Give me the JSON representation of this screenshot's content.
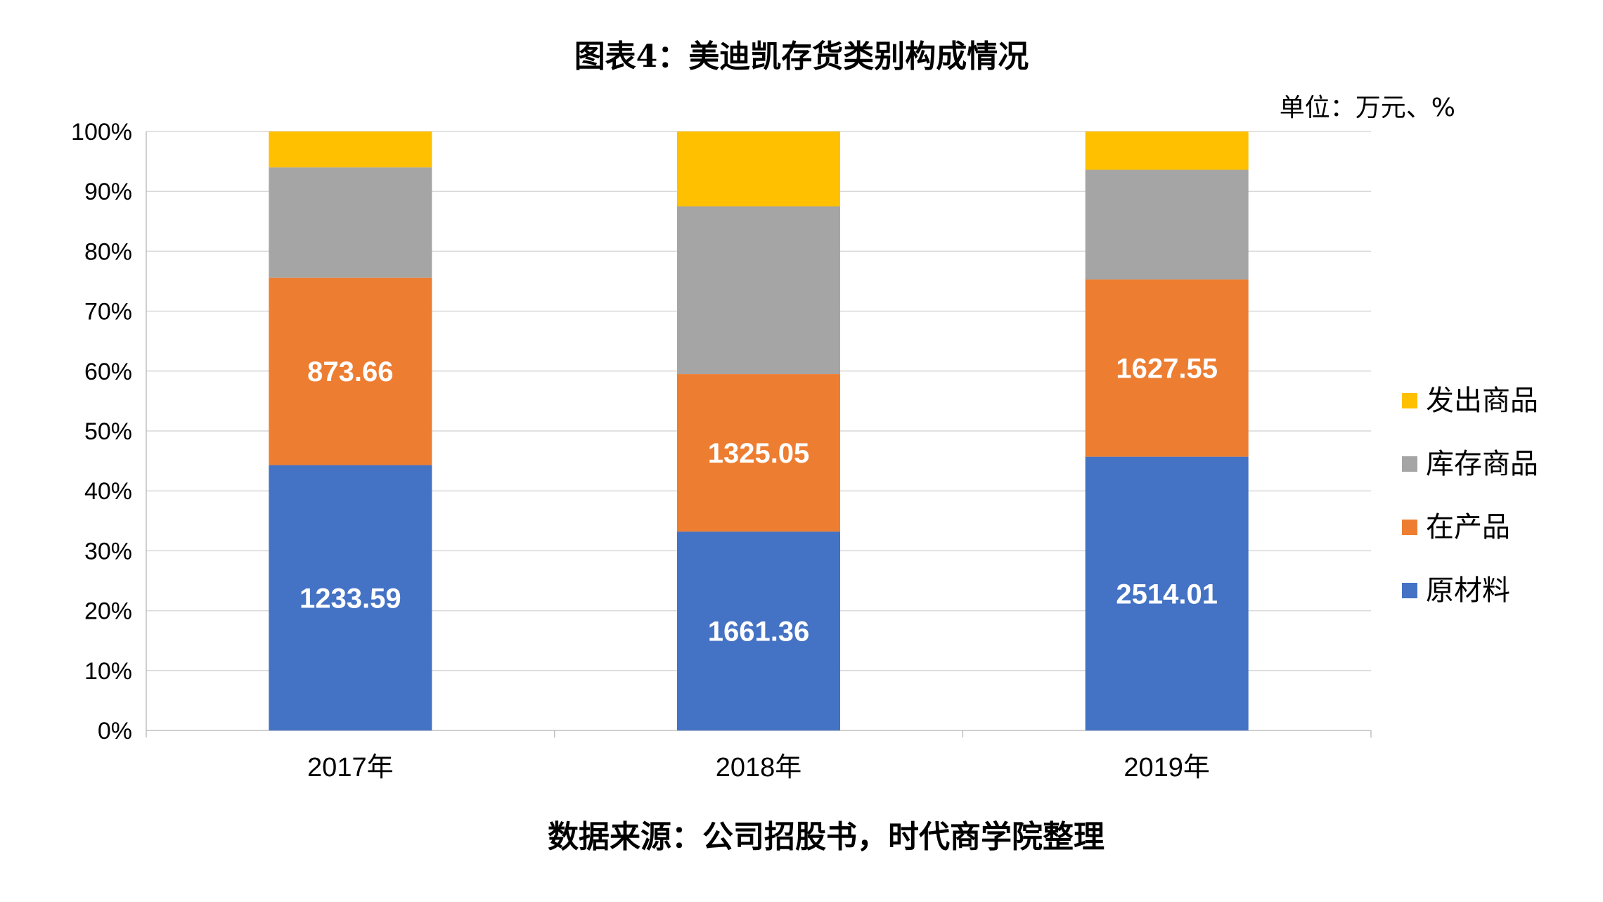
{
  "chart_data": {
    "type": "bar",
    "stacked": true,
    "percent_stacked": true,
    "title": "图表4：美迪凯存货类别构成情况",
    "unit_note": "单位：万元、%",
    "source": "数据来源：公司招股书，时代商学院整理",
    "categories": [
      "2017年",
      "2018年",
      "2019年"
    ],
    "y_ticks": [
      "0%",
      "10%",
      "20%",
      "30%",
      "40%",
      "50%",
      "60%",
      "70%",
      "80%",
      "90%",
      "100%"
    ],
    "ylim": [
      0,
      100
    ],
    "grid": true,
    "legend_position": "right",
    "series": [
      {
        "name": "原材料",
        "color": "#4472C4",
        "shares": [
          44.3,
          33.2,
          45.7
        ],
        "labels": [
          "1233.59",
          "1661.36",
          "2514.01"
        ]
      },
      {
        "name": "在产品",
        "color": "#ED7D31",
        "shares": [
          31.3,
          26.3,
          29.6
        ],
        "labels": [
          "873.66",
          "1325.05",
          "1627.55"
        ]
      },
      {
        "name": "库存商品",
        "color": "#A5A5A5",
        "shares": [
          18.4,
          28.0,
          18.3
        ],
        "labels": [
          "",
          "",
          ""
        ]
      },
      {
        "name": "发出商品",
        "color": "#FFC000",
        "shares": [
          6.0,
          12.5,
          6.4
        ],
        "labels": [
          "",
          "",
          ""
        ]
      }
    ]
  }
}
